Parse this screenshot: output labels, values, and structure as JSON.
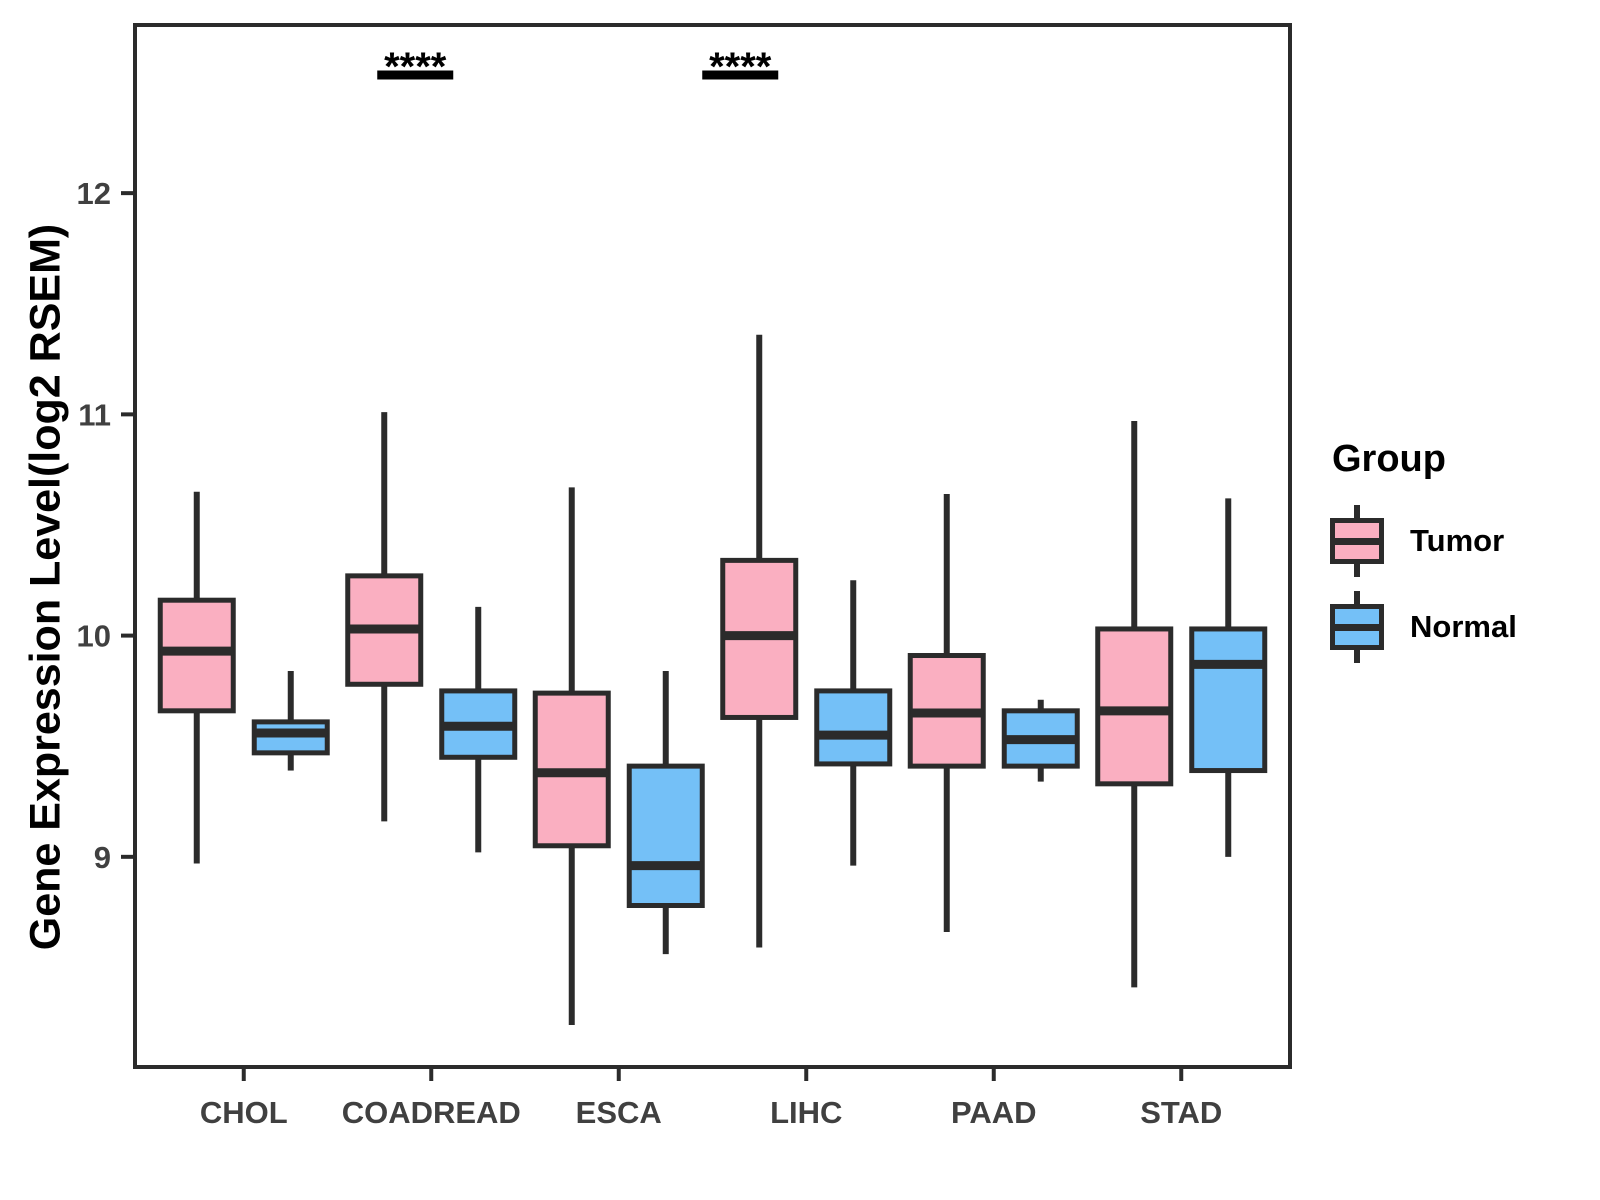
{
  "legend": {
    "title": "Group",
    "items": [
      {
        "label": "Tumor",
        "color": "#FAAFC1"
      },
      {
        "label": "Normal",
        "color": "#74C0F7"
      }
    ]
  },
  "chart_data": {
    "type": "boxplot",
    "title": "",
    "xlabel": "",
    "ylabel": "Gene Expression Level(log2 RSEM)",
    "grid": false,
    "legend_position": "right",
    "ylim": [
      8.05,
      12.76
    ],
    "yticks": [
      9,
      10,
      11,
      12
    ],
    "categories": [
      "CHOL",
      "COADREAD",
      "ESCA",
      "LIHC",
      "PAAD",
      "STAD"
    ],
    "groups": [
      "Tumor",
      "Normal"
    ],
    "colors": {
      "Tumor": "#FAAFC1",
      "Normal": "#74C0F7"
    },
    "stroke_color": "#2B2B2B",
    "series": [
      {
        "name": "Tumor",
        "boxes": [
          {
            "category": "CHOL",
            "whisker_low": 8.97,
            "q1": 9.66,
            "median": 9.93,
            "q3": 10.16,
            "whisker_high": 10.65
          },
          {
            "category": "COADREAD",
            "whisker_low": 9.16,
            "q1": 9.78,
            "median": 10.03,
            "q3": 10.27,
            "whisker_high": 11.01
          },
          {
            "category": "ESCA",
            "whisker_low": 8.24,
            "q1": 9.05,
            "median": 9.38,
            "q3": 9.74,
            "whisker_high": 10.67
          },
          {
            "category": "LIHC",
            "whisker_low": 8.59,
            "q1": 9.63,
            "median": 10.0,
            "q3": 10.34,
            "whisker_high": 11.36
          },
          {
            "category": "PAAD",
            "whisker_low": 8.66,
            "q1": 9.41,
            "median": 9.65,
            "q3": 9.91,
            "whisker_high": 10.64
          },
          {
            "category": "STAD",
            "whisker_low": 8.41,
            "q1": 9.33,
            "median": 9.66,
            "q3": 10.03,
            "whisker_high": 10.97
          }
        ]
      },
      {
        "name": "Normal",
        "boxes": [
          {
            "category": "CHOL",
            "whisker_low": 9.39,
            "q1": 9.47,
            "median": 9.56,
            "q3": 9.61,
            "whisker_high": 9.84
          },
          {
            "category": "COADREAD",
            "whisker_low": 9.02,
            "q1": 9.45,
            "median": 9.59,
            "q3": 9.75,
            "whisker_high": 10.13
          },
          {
            "category": "ESCA",
            "whisker_low": 8.56,
            "q1": 8.78,
            "median": 8.96,
            "q3": 9.41,
            "whisker_high": 9.84
          },
          {
            "category": "LIHC",
            "whisker_low": 8.96,
            "q1": 9.42,
            "median": 9.55,
            "q3": 9.75,
            "whisker_high": 10.25
          },
          {
            "category": "PAAD",
            "whisker_low": 9.34,
            "q1": 9.41,
            "median": 9.53,
            "q3": 9.66,
            "whisker_high": 9.71
          },
          {
            "category": "STAD",
            "whisker_low": 9.0,
            "q1": 9.39,
            "median": 9.87,
            "q3": 10.03,
            "whisker_high": 10.62
          }
        ]
      }
    ],
    "significance": [
      {
        "category": "COADREAD",
        "label": "****",
        "dx": -16
      },
      {
        "category": "LIHC",
        "label": "****",
        "dx": -66
      }
    ]
  }
}
